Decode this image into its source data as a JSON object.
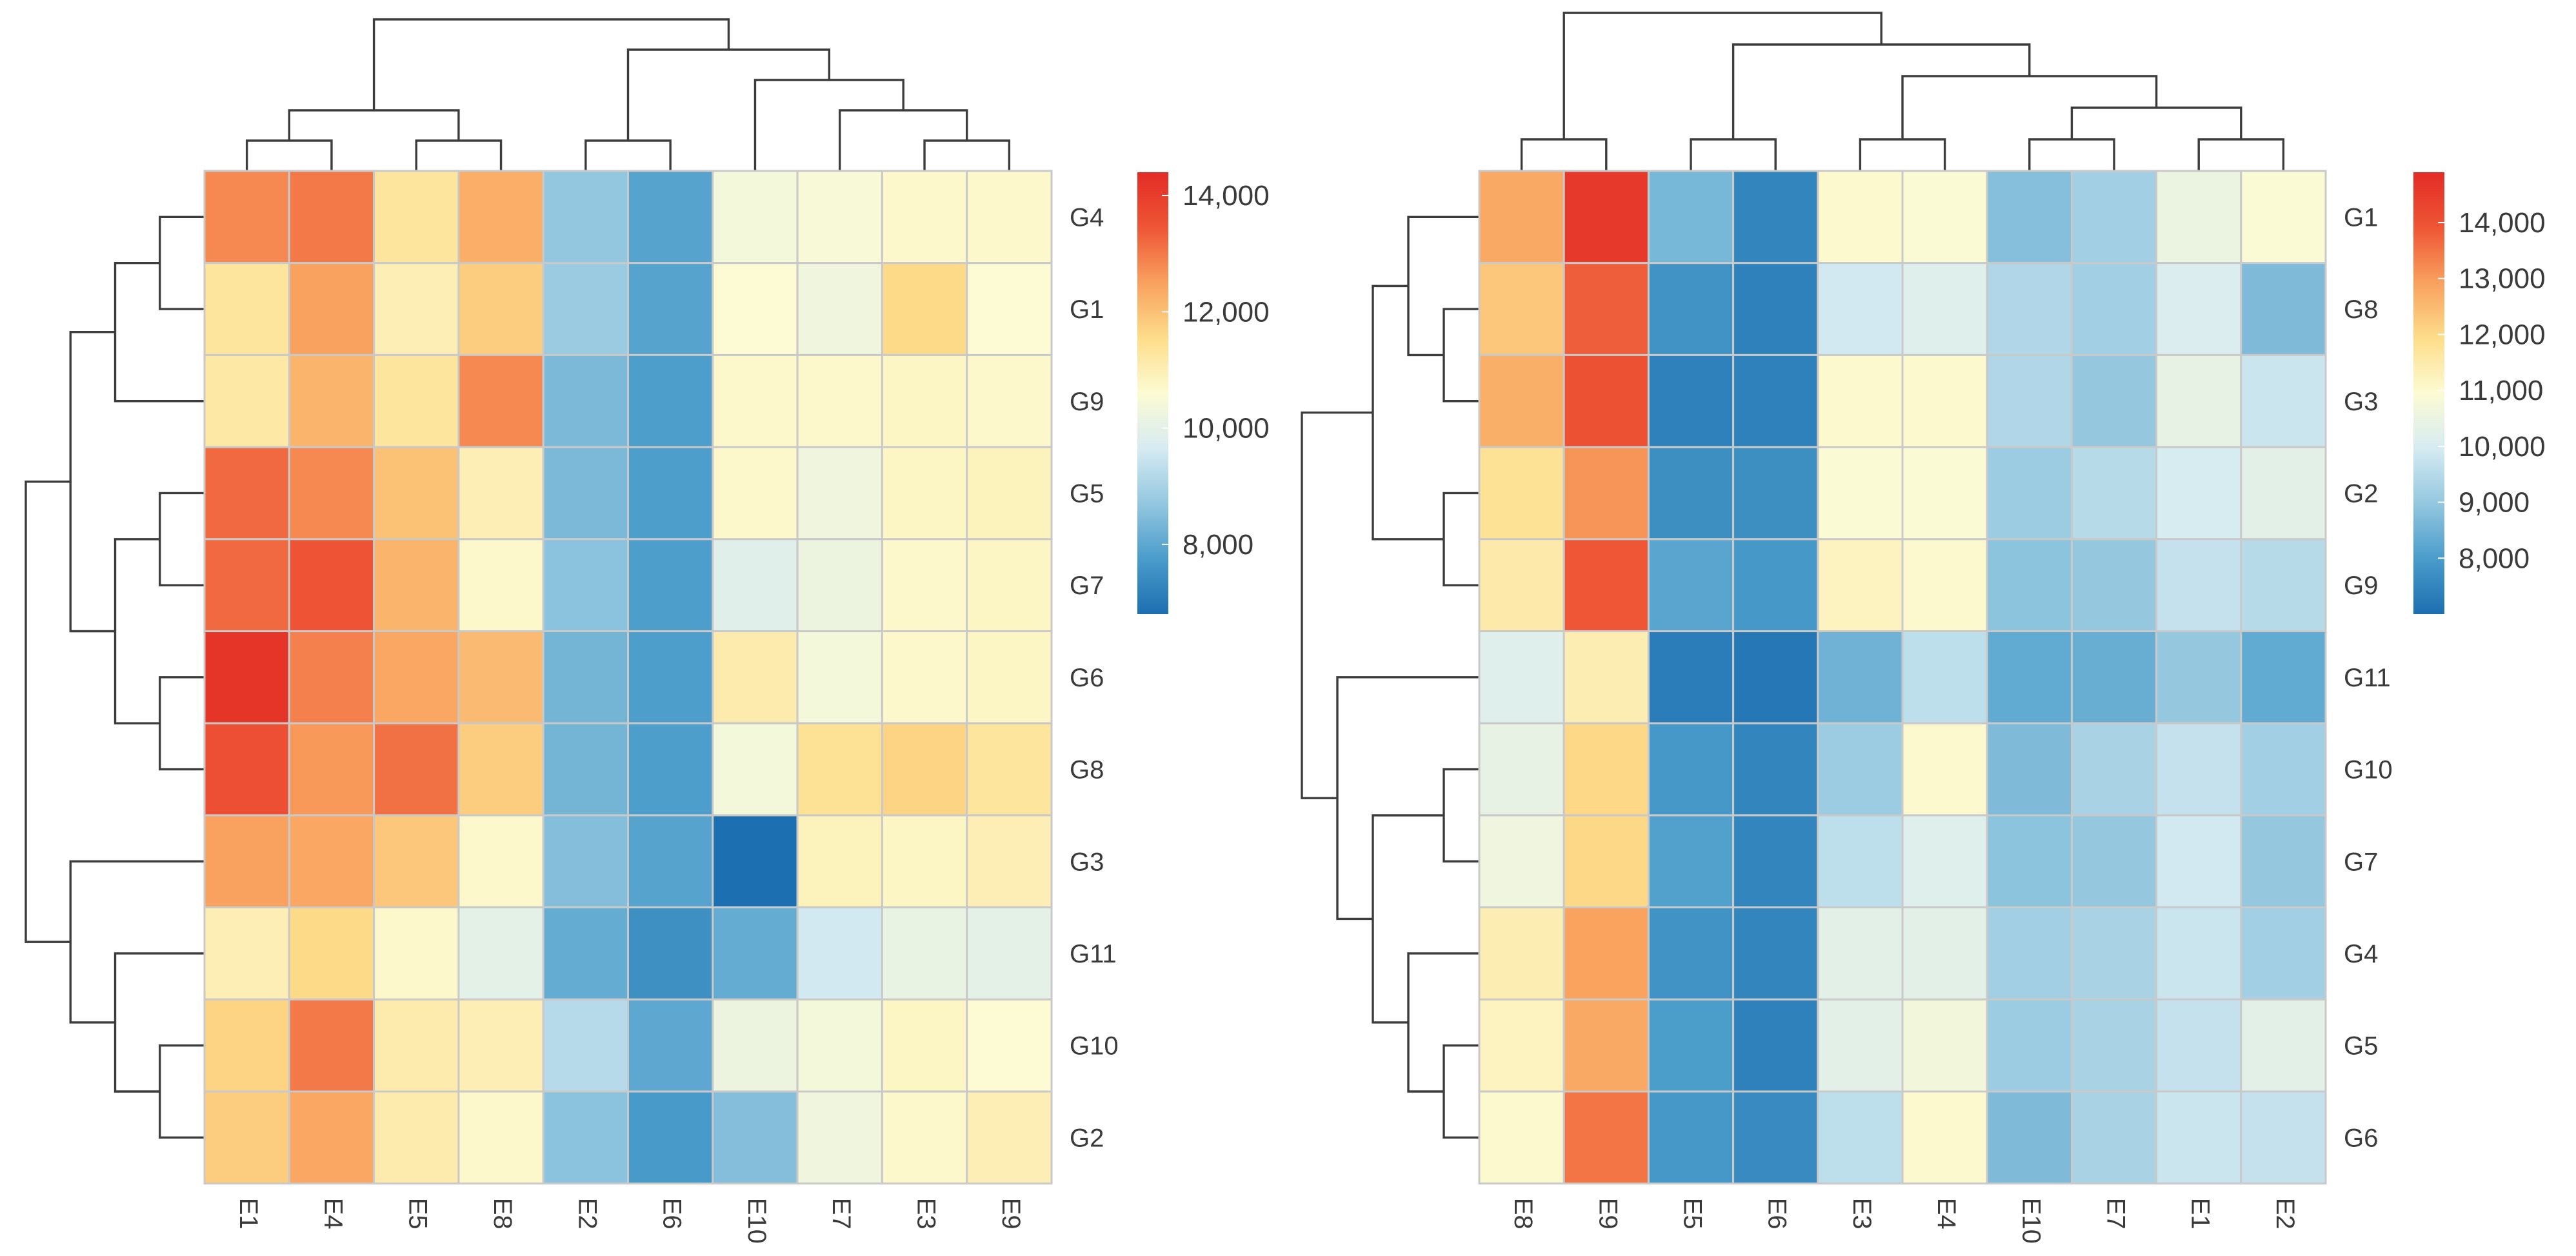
{
  "chart_data": [
    {
      "type": "heatmap",
      "title": "",
      "columns": [
        "E1",
        "E4",
        "E5",
        "E8",
        "E2",
        "E6",
        "E10",
        "E7",
        "E3",
        "E9"
      ],
      "rows": [
        "G4",
        "G1",
        "G9",
        "G5",
        "G7",
        "G6",
        "G8",
        "G3",
        "G11",
        "G10",
        "G2"
      ],
      "values": [
        [
          12800,
          13000,
          11300,
          12300,
          8700,
          7900,
          10400,
          10500,
          10700,
          10700
        ],
        [
          11300,
          12500,
          11000,
          11800,
          8800,
          7900,
          10600,
          10300,
          11600,
          10600
        ],
        [
          11200,
          12200,
          11300,
          12800,
          8400,
          7800,
          10700,
          10700,
          10800,
          10700
        ],
        [
          13200,
          12800,
          12000,
          11000,
          8400,
          7800,
          10700,
          10300,
          10800,
          10900
        ],
        [
          13200,
          13500,
          12200,
          10700,
          8600,
          7800,
          9900,
          10200,
          10700,
          10800
        ],
        [
          14200,
          12900,
          12400,
          12100,
          8300,
          7800,
          11100,
          10400,
          10700,
          10800
        ],
        [
          13600,
          12600,
          13100,
          11800,
          8300,
          7800,
          10400,
          11400,
          11700,
          11300
        ],
        [
          12500,
          12400,
          11900,
          10700,
          8500,
          7900,
          6800,
          10900,
          10800,
          11000
        ],
        [
          11000,
          11600,
          10700,
          10000,
          8100,
          7500,
          8100,
          9600,
          10100,
          10000
        ],
        [
          11700,
          13000,
          11100,
          11000,
          9200,
          8000,
          10200,
          10400,
          10800,
          10600
        ],
        [
          11800,
          12400,
          11100,
          10700,
          8600,
          7700,
          8500,
          10300,
          10700,
          11000
        ]
      ],
      "colorbar": {
        "min": 6800,
        "max": 14400,
        "ticks": [
          "14,000",
          "12,000",
          "10,000",
          "8,000"
        ],
        "colors": [
          "#1c6fb0",
          "#4a9cca",
          "#93c7df",
          "#d6ebf2",
          "#fcfbd3",
          "#fddd8a",
          "#f9a15e",
          "#ee5535",
          "#e32c26"
        ]
      }
    },
    {
      "type": "heatmap",
      "title": "",
      "columns": [
        "E8",
        "E9",
        "E5",
        "E6",
        "E3",
        "E4",
        "E10",
        "E7",
        "E1",
        "E2"
      ],
      "rows": [
        "G1",
        "G8",
        "G3",
        "G2",
        "G9",
        "G11",
        "G10",
        "G7",
        "G4",
        "G5",
        "G6"
      ],
      "values": [
        [
          12800,
          14600,
          8600,
          7500,
          11000,
          10900,
          8800,
          9200,
          10500,
          10900
        ],
        [
          12300,
          13800,
          7800,
          7400,
          9900,
          10200,
          9400,
          9200,
          10100,
          8700
        ],
        [
          12700,
          14000,
          7400,
          7400,
          11000,
          11000,
          9400,
          9000,
          10400,
          9800
        ],
        [
          11800,
          13100,
          7700,
          7700,
          10900,
          10900,
          9100,
          9500,
          10000,
          10300
        ],
        [
          11500,
          13900,
          8200,
          7900,
          11200,
          11000,
          8900,
          9000,
          9700,
          9500
        ],
        [
          10200,
          11400,
          7300,
          7200,
          8500,
          9600,
          8300,
          8400,
          9000,
          8300
        ],
        [
          10400,
          12000,
          7900,
          7500,
          9100,
          11000,
          8700,
          9300,
          9700,
          9200
        ],
        [
          10600,
          12000,
          8100,
          7500,
          9600,
          10200,
          8900,
          9000,
          9900,
          9000
        ],
        [
          11400,
          12900,
          7800,
          7500,
          10300,
          10300,
          9200,
          9300,
          9800,
          9200
        ],
        [
          11200,
          12800,
          8000,
          7400,
          10300,
          10700,
          9100,
          9300,
          9700,
          10300
        ],
        [
          11000,
          13500,
          7900,
          7600,
          9600,
          11000,
          8700,
          9300,
          9800,
          9700
        ]
      ],
      "colorbar": {
        "min": 7000,
        "max": 14900,
        "ticks": [
          "14,000",
          "13,000",
          "12,000",
          "11,000",
          "10,000",
          "9,000",
          "8,000"
        ],
        "colors": [
          "#1c6fb0",
          "#4a9cca",
          "#93c7df",
          "#d6ebf2",
          "#fcfbd3",
          "#fddd8a",
          "#f9a15e",
          "#ee5535",
          "#e32c26"
        ]
      }
    }
  ]
}
